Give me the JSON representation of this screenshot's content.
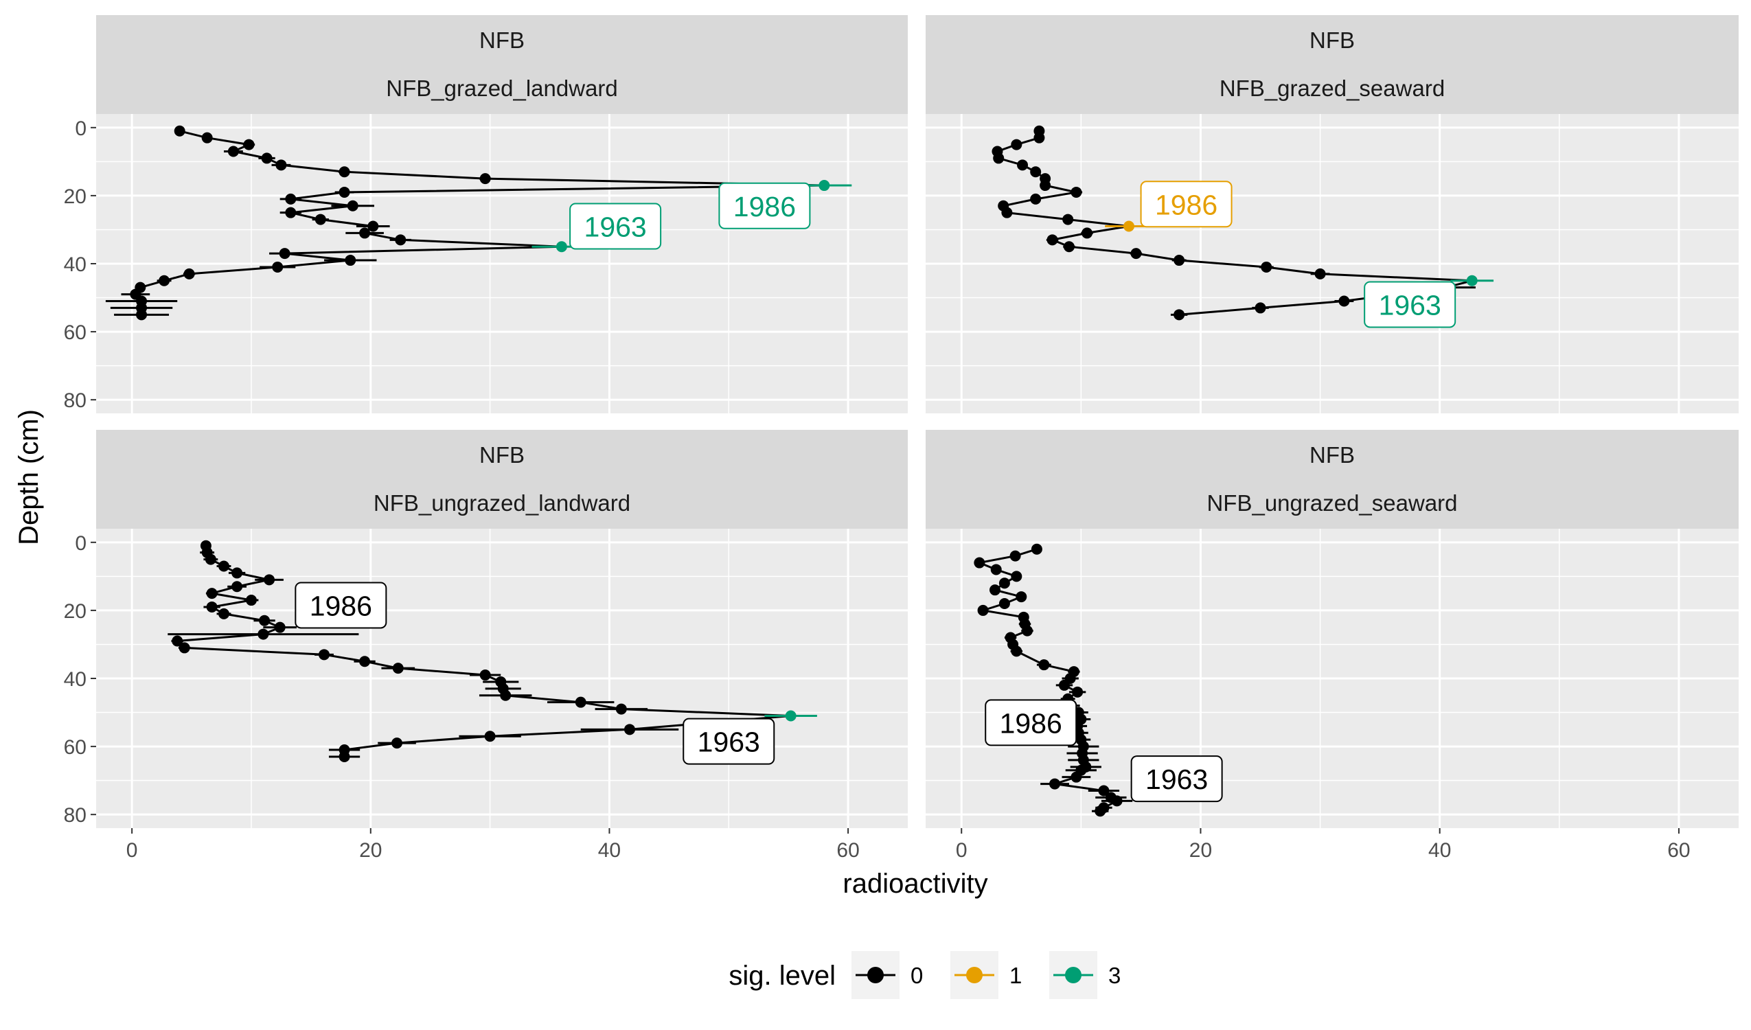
{
  "chart_data": {
    "type": "scatter",
    "xlabel": "radioactivity",
    "ylabel": "Depth (cm)",
    "xlim": [
      -3,
      65
    ],
    "ylim": [
      84,
      -4
    ],
    "x_ticks": [
      "0",
      "20",
      "40",
      "60"
    ],
    "y_ticks": [
      "0",
      "20",
      "40",
      "60",
      "80"
    ],
    "grid": true,
    "y_reversed": true,
    "legend": {
      "title": "sig. level",
      "position": "bottom",
      "items": [
        {
          "label": "0",
          "color": "#000000"
        },
        {
          "label": "1",
          "color": "#E69F00"
        },
        {
          "label": "3",
          "color": "#009E73"
        }
      ]
    },
    "colors": {
      "0": "#000000",
      "1": "#E69F00",
      "3": "#009E73"
    },
    "panels": [
      {
        "strip_top": "NFB",
        "strip_bottom": "NFB_grazed_landward",
        "points": [
          [
            4,
            1,
            0,
            0.3
          ],
          [
            6.3,
            3,
            0,
            0.4
          ],
          [
            9.8,
            5,
            0,
            0.5
          ],
          [
            8.5,
            7,
            0,
            0.8
          ],
          [
            11.3,
            9,
            0,
            0.7
          ],
          [
            12.5,
            11,
            0,
            0.8
          ],
          [
            17.8,
            13,
            0,
            0.5
          ],
          [
            29.6,
            15,
            0,
            0.5
          ],
          [
            58,
            17,
            3,
            2.3
          ],
          [
            17.8,
            19,
            0,
            0.8
          ],
          [
            13.3,
            21,
            0,
            0.9
          ],
          [
            18.5,
            23,
            0,
            1.8
          ],
          [
            13.3,
            25,
            0,
            0.9
          ],
          [
            15.8,
            27,
            0,
            0.7
          ],
          [
            20.2,
            29,
            0,
            1.4
          ],
          [
            19.5,
            31,
            0,
            1.6
          ],
          [
            22.5,
            33,
            0,
            0.9
          ],
          [
            36,
            35,
            3,
            2.5
          ],
          [
            12.8,
            37,
            0,
            1.3
          ],
          [
            18.3,
            39,
            0,
            2.2
          ],
          [
            12.2,
            41,
            0,
            1.5
          ],
          [
            4.8,
            43,
            0,
            0.5
          ],
          [
            2.7,
            45,
            0,
            0.6
          ],
          [
            0.7,
            47,
            0,
            0.4
          ],
          [
            0.3,
            49,
            0,
            1.2
          ],
          [
            0.8,
            51,
            0,
            3.0
          ],
          [
            0.8,
            53,
            0,
            2.6
          ],
          [
            0.8,
            55,
            0,
            2.3
          ]
        ],
        "labels": [
          {
            "text": "1986",
            "x": 53,
            "y": 23,
            "level": "3"
          },
          {
            "text": "1963",
            "x": 40.5,
            "y": 29,
            "level": "3"
          }
        ]
      },
      {
        "strip_top": "NFB",
        "strip_bottom": "NFB_grazed_seaward",
        "points": [
          [
            6.5,
            1,
            0,
            0.3
          ],
          [
            6.5,
            3,
            0,
            0.4
          ],
          [
            4.6,
            5,
            0,
            0.3
          ],
          [
            3,
            7,
            0,
            0.3
          ],
          [
            3.1,
            9,
            0,
            0.4
          ],
          [
            5.1,
            11,
            0,
            0.4
          ],
          [
            6.2,
            13,
            0,
            0.3
          ],
          [
            7,
            15,
            0,
            0.4
          ],
          [
            7,
            17,
            0,
            0.3
          ],
          [
            9.6,
            19,
            0,
            0.5
          ],
          [
            6.2,
            21,
            0,
            0.4
          ],
          [
            3.5,
            23,
            0,
            0.3
          ],
          [
            3.8,
            25,
            0,
            0.3
          ],
          [
            8.9,
            27,
            0,
            0.4
          ],
          [
            14,
            29,
            1,
            2.0
          ],
          [
            10.5,
            31,
            0,
            0.5
          ],
          [
            7.6,
            33,
            0,
            0.5
          ],
          [
            9,
            35,
            0,
            0.5
          ],
          [
            14.6,
            37,
            0,
            0.5
          ],
          [
            18.2,
            39,
            0,
            0.6
          ],
          [
            25.5,
            41,
            0,
            0.6
          ],
          [
            30,
            43,
            0,
            0.8
          ],
          [
            42.7,
            45,
            3,
            1.8
          ],
          [
            40.5,
            47,
            0,
            2.5
          ],
          [
            32,
            51,
            0,
            0.8
          ],
          [
            25,
            53,
            0,
            0.7
          ],
          [
            18.2,
            55,
            0,
            0.7
          ]
        ],
        "labels": [
          {
            "text": "1986",
            "x": 18.8,
            "y": 22.5,
            "level": "1"
          },
          {
            "text": "1963",
            "x": 37.5,
            "y": 52,
            "level": "3"
          }
        ]
      },
      {
        "strip_top": "NFB",
        "strip_bottom": "NFB_ungrazed_landward",
        "points": [
          [
            6.2,
            1,
            0,
            0.4
          ],
          [
            6.3,
            3,
            0,
            0.6
          ],
          [
            6.6,
            5,
            0,
            0.6
          ],
          [
            7.7,
            7,
            0,
            0.6
          ],
          [
            8.8,
            9,
            0,
            0.7
          ],
          [
            11.5,
            11,
            0,
            1.2
          ],
          [
            8.8,
            13,
            0,
            0.8
          ],
          [
            6.7,
            15,
            0,
            0.5
          ],
          [
            10,
            17,
            0,
            0.6
          ],
          [
            6.7,
            19,
            0,
            0.7
          ],
          [
            7.7,
            21,
            0,
            0.6
          ],
          [
            11.1,
            23,
            0,
            0.9
          ],
          [
            12.4,
            25,
            0,
            1.4
          ],
          [
            11,
            27,
            0,
            8.0
          ],
          [
            3.8,
            29,
            0,
            0.5
          ],
          [
            4.4,
            31,
            0,
            0.5
          ],
          [
            16.1,
            33,
            0,
            0.8
          ],
          [
            19.5,
            35,
            0,
            0.9
          ],
          [
            22.3,
            37,
            0,
            1.4
          ],
          [
            29.6,
            39,
            0,
            1.3
          ],
          [
            30.9,
            41,
            0,
            1.5
          ],
          [
            31.1,
            43,
            0,
            1.5
          ],
          [
            31.3,
            45,
            0,
            2.2
          ],
          [
            37.6,
            47,
            0,
            2.8
          ],
          [
            41,
            49,
            0,
            2.2
          ],
          [
            55.2,
            51,
            3,
            2.2
          ],
          [
            41.7,
            55,
            0,
            4.1
          ],
          [
            30,
            57,
            0,
            2.6
          ],
          [
            22.2,
            59,
            0,
            1.6
          ],
          [
            17.8,
            61,
            0,
            1.3
          ],
          [
            17.8,
            63,
            0,
            1.3
          ]
        ],
        "labels": [
          {
            "text": "1986",
            "x": 17.5,
            "y": 18.5,
            "level": "0"
          },
          {
            "text": "1963",
            "x": 50,
            "y": 58.5,
            "level": "0"
          }
        ]
      },
      {
        "strip_top": "NFB",
        "strip_bottom": "NFB_ungrazed_seaward",
        "points": [
          [
            6.3,
            2,
            0,
            0.4
          ],
          [
            4.5,
            4,
            0,
            0.4
          ],
          [
            1.5,
            6,
            0,
            0.3
          ],
          [
            2.9,
            8,
            0,
            0.3
          ],
          [
            4.6,
            10,
            0,
            0.3
          ],
          [
            3.6,
            12,
            0,
            0.4
          ],
          [
            2.8,
            14,
            0,
            0.4
          ],
          [
            5,
            16,
            0,
            0.4
          ],
          [
            3.6,
            18,
            0,
            0.4
          ],
          [
            1.8,
            20,
            0,
            0.4
          ],
          [
            5.2,
            22,
            0,
            0.4
          ],
          [
            5.3,
            24,
            0,
            0.5
          ],
          [
            5.5,
            26,
            0,
            0.5
          ],
          [
            4.1,
            28,
            0,
            0.5
          ],
          [
            4.3,
            30,
            0,
            0.4
          ],
          [
            4.6,
            32,
            0,
            0.5
          ],
          [
            6.9,
            36,
            0,
            0.6
          ],
          [
            9.4,
            38,
            0,
            0.5
          ],
          [
            9.1,
            40,
            0,
            0.7
          ],
          [
            8.6,
            42,
            0,
            0.7
          ],
          [
            9.7,
            44,
            0,
            0.7
          ],
          [
            8.9,
            46,
            0,
            0.6
          ],
          [
            9.2,
            48,
            0,
            0.7
          ],
          [
            9.8,
            50,
            0,
            0.8
          ],
          [
            10,
            52,
            0,
            0.8
          ],
          [
            9.7,
            54,
            0,
            0.8
          ],
          [
            9.8,
            56,
            0,
            0.8
          ],
          [
            10,
            58,
            0,
            0.8
          ],
          [
            10.2,
            60,
            0,
            1.3
          ],
          [
            10.1,
            62,
            0,
            1.3
          ],
          [
            10.2,
            64,
            0,
            1.3
          ],
          [
            10.4,
            66,
            0,
            1.3
          ],
          [
            10,
            67,
            0,
            1.3
          ],
          [
            9.6,
            69,
            0,
            1.2
          ],
          [
            7.8,
            71,
            0,
            1.2
          ],
          [
            11.9,
            73,
            0,
            1.3
          ],
          [
            12.5,
            75,
            0,
            1.3
          ],
          [
            13,
            76,
            0,
            1.3
          ],
          [
            11.9,
            78,
            0,
            0.7
          ],
          [
            11.6,
            79,
            0,
            0.7
          ]
        ],
        "labels": [
          {
            "text": "1986",
            "x": 5.8,
            "y": 53,
            "level": "0"
          },
          {
            "text": "1963",
            "x": 18,
            "y": 69.5,
            "level": "0"
          }
        ]
      }
    ]
  }
}
